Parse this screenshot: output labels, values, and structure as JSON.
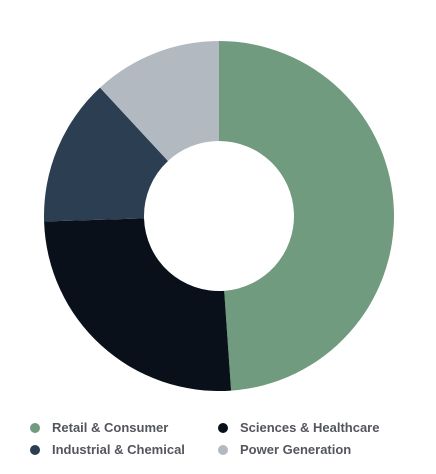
{
  "chart_data": {
    "type": "pie",
    "donut": true,
    "categories": [
      "Retail & Consumer",
      "Sciences & Healthcare",
      "Industrial & Chemical",
      "Power Generation"
    ],
    "values": [
      48.9,
      25.6,
      13.6,
      11.9
    ],
    "colors": [
      "#709b7e",
      "#0a1019",
      "#2b3e52",
      "#b3b9c0"
    ],
    "title": "",
    "legend": "bottom"
  }
}
